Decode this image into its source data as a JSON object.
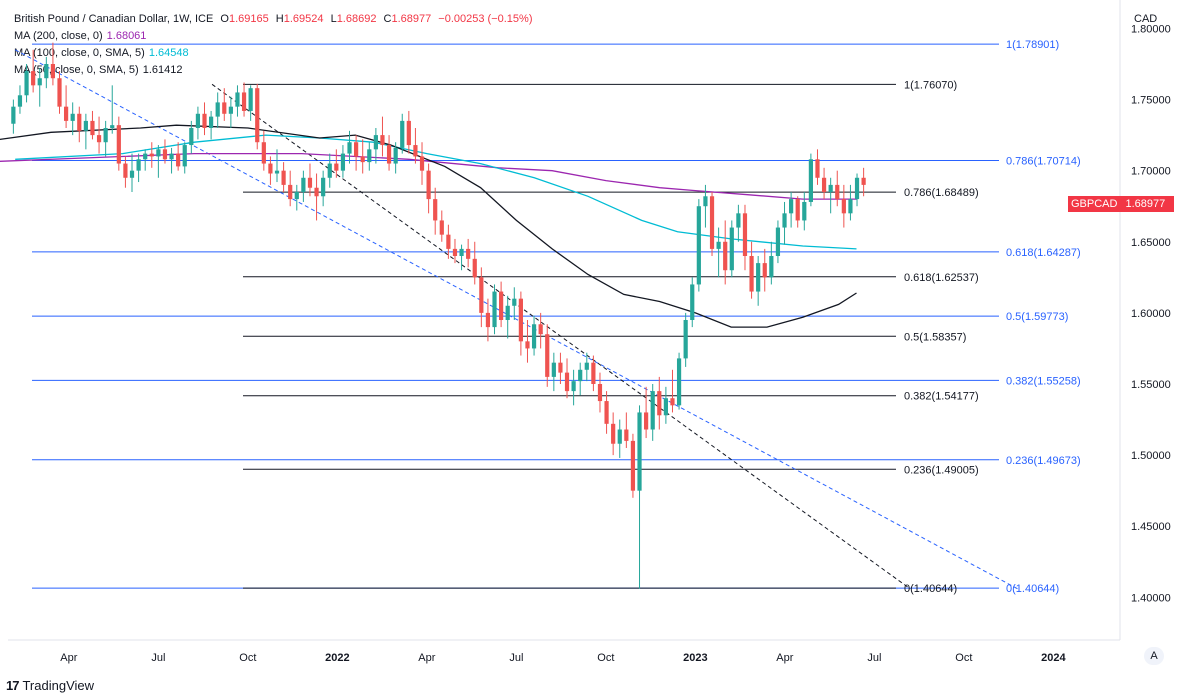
{
  "header": {
    "title": "British Pound / Canadian Dollar, 1W, ICE",
    "o_label": "O",
    "o": "1.69165",
    "h_label": "H",
    "h": "1.69524",
    "l_label": "L",
    "l": "1.68692",
    "c_label": "C",
    "c": "1.68977",
    "change": "−0.00253 (−0.15%)",
    "ma200_label": "MA (200, close, 0)",
    "ma200_value": "1.68061",
    "ma100_label": "MA (100, close, 0, SMA, 5)",
    "ma100_value": "1.64548",
    "ma50_label": "MA (50, close, 0, SMA, 5)",
    "ma50_value": "1.61412"
  },
  "axis": {
    "currency": "CAD",
    "scale_button": "A"
  },
  "symbol_tag": {
    "symbol": "GBPCAD",
    "price": "1.68977"
  },
  "brand": {
    "name": "TradingView",
    "logo": "17"
  },
  "colors": {
    "up": "#26a69a",
    "down": "#ef5350",
    "ma200": "#9c27b0",
    "ma100": "#00bcd4",
    "ma50": "#131722",
    "fib_blue": "#2962ff",
    "fib_black": "#131722"
  },
  "chart_data": {
    "type": "candlestick",
    "symbol": "GBPCAD",
    "timeframe": "1W",
    "ylim": [
      1.37,
      1.82
    ],
    "y_ticks": [
      1.4,
      1.45,
      1.5,
      1.55,
      1.6,
      1.65,
      1.7,
      1.75,
      1.8
    ],
    "y_tick_labels": [
      "1.40000",
      "1.45000",
      "1.50000",
      "1.55000",
      "1.60000",
      "1.65000",
      "1.70000",
      "1.75000",
      "1.80000"
    ],
    "x_ticks": [
      {
        "label": "Apr",
        "x": 2021.25,
        "bold": false
      },
      {
        "label": "Jul",
        "x": 2021.5,
        "bold": false
      },
      {
        "label": "Oct",
        "x": 2021.75,
        "bold": false
      },
      {
        "label": "2022",
        "x": 2022.0,
        "bold": true
      },
      {
        "label": "Apr",
        "x": 2022.25,
        "bold": false
      },
      {
        "label": "Jul",
        "x": 2022.5,
        "bold": false
      },
      {
        "label": "Oct",
        "x": 2022.75,
        "bold": false
      },
      {
        "label": "2023",
        "x": 2023.0,
        "bold": true
      },
      {
        "label": "Apr",
        "x": 2023.25,
        "bold": false
      },
      {
        "label": "Jul",
        "x": 2023.5,
        "bold": false
      },
      {
        "label": "Oct",
        "x": 2023.75,
        "bold": false
      },
      {
        "label": "2024",
        "x": 2024.0,
        "bold": true
      }
    ],
    "candles": [
      [
        1.733,
        1.75,
        1.726,
        1.745
      ],
      [
        1.745,
        1.76,
        1.74,
        1.753
      ],
      [
        1.753,
        1.775,
        1.748,
        1.77
      ],
      [
        1.77,
        1.785,
        1.755,
        1.76
      ],
      [
        1.76,
        1.772,
        1.745,
        1.765
      ],
      [
        1.765,
        1.78,
        1.758,
        1.775
      ],
      [
        1.775,
        1.79,
        1.76,
        1.765
      ],
      [
        1.765,
        1.77,
        1.74,
        1.745
      ],
      [
        1.745,
        1.76,
        1.73,
        1.735
      ],
      [
        1.735,
        1.748,
        1.725,
        1.74
      ],
      [
        1.74,
        1.745,
        1.72,
        1.728
      ],
      [
        1.728,
        1.74,
        1.715,
        1.735
      ],
      [
        1.735,
        1.742,
        1.722,
        1.725
      ],
      [
        1.725,
        1.738,
        1.712,
        1.72
      ],
      [
        1.72,
        1.735,
        1.71,
        1.73
      ],
      [
        1.73,
        1.76,
        1.726,
        1.732
      ],
      [
        1.732,
        1.738,
        1.7,
        1.705
      ],
      [
        1.705,
        1.71,
        1.688,
        1.695
      ],
      [
        1.695,
        1.712,
        1.685,
        1.7
      ],
      [
        1.7,
        1.712,
        1.692,
        1.708
      ],
      [
        1.708,
        1.715,
        1.7,
        1.712
      ],
      [
        1.712,
        1.72,
        1.702,
        1.71
      ],
      [
        1.71,
        1.718,
        1.695,
        1.715
      ],
      [
        1.715,
        1.722,
        1.705,
        1.708
      ],
      [
        1.708,
        1.716,
        1.698,
        1.712
      ],
      [
        1.712,
        1.72,
        1.7,
        1.703
      ],
      [
        1.703,
        1.72,
        1.698,
        1.718
      ],
      [
        1.718,
        1.735,
        1.712,
        1.73
      ],
      [
        1.73,
        1.745,
        1.722,
        1.74
      ],
      [
        1.74,
        1.748,
        1.725,
        1.73
      ],
      [
        1.73,
        1.742,
        1.722,
        1.738
      ],
      [
        1.738,
        1.755,
        1.73,
        1.748
      ],
      [
        1.748,
        1.758,
        1.735,
        1.74
      ],
      [
        1.74,
        1.752,
        1.73,
        1.745
      ],
      [
        1.745,
        1.76,
        1.738,
        1.755
      ],
      [
        1.755,
        1.762,
        1.738,
        1.742
      ],
      [
        1.742,
        1.76,
        1.735,
        1.758
      ],
      [
        1.758,
        1.761,
        1.715,
        1.72
      ],
      [
        1.72,
        1.728,
        1.7,
        1.705
      ],
      [
        1.705,
        1.71,
        1.69,
        1.698
      ],
      [
        1.698,
        1.715,
        1.692,
        1.7
      ],
      [
        1.7,
        1.706,
        1.685,
        1.69
      ],
      [
        1.69,
        1.7,
        1.675,
        1.68
      ],
      [
        1.68,
        1.69,
        1.672,
        1.685
      ],
      [
        1.685,
        1.7,
        1.678,
        1.695
      ],
      [
        1.695,
        1.705,
        1.682,
        1.688
      ],
      [
        1.688,
        1.698,
        1.665,
        1.682
      ],
      [
        1.682,
        1.7,
        1.675,
        1.695
      ],
      [
        1.695,
        1.712,
        1.688,
        1.705
      ],
      [
        1.705,
        1.715,
        1.695,
        1.7
      ],
      [
        1.7,
        1.718,
        1.695,
        1.712
      ],
      [
        1.712,
        1.728,
        1.705,
        1.72
      ],
      [
        1.72,
        1.725,
        1.7,
        1.71
      ],
      [
        1.71,
        1.722,
        1.698,
        1.706
      ],
      [
        1.706,
        1.72,
        1.7,
        1.715
      ],
      [
        1.715,
        1.73,
        1.705,
        1.725
      ],
      [
        1.725,
        1.738,
        1.71,
        1.718
      ],
      [
        1.718,
        1.725,
        1.7,
        1.705
      ],
      [
        1.705,
        1.72,
        1.698,
        1.716
      ],
      [
        1.716,
        1.74,
        1.712,
        1.735
      ],
      [
        1.735,
        1.742,
        1.712,
        1.718
      ],
      [
        1.718,
        1.73,
        1.705,
        1.71
      ],
      [
        1.71,
        1.72,
        1.69,
        1.7
      ],
      [
        1.7,
        1.705,
        1.67,
        1.68
      ],
      [
        1.68,
        1.688,
        1.655,
        1.665
      ],
      [
        1.665,
        1.672,
        1.65,
        1.655
      ],
      [
        1.655,
        1.662,
        1.638,
        1.645
      ],
      [
        1.645,
        1.652,
        1.635,
        1.64
      ],
      [
        1.64,
        1.648,
        1.63,
        1.645
      ],
      [
        1.645,
        1.652,
        1.632,
        1.638
      ],
      [
        1.638,
        1.65,
        1.62,
        1.625
      ],
      [
        1.625,
        1.632,
        1.59,
        1.6
      ],
      [
        1.6,
        1.61,
        1.58,
        1.59
      ],
      [
        1.59,
        1.62,
        1.585,
        1.615
      ],
      [
        1.615,
        1.622,
        1.59,
        1.595
      ],
      [
        1.595,
        1.612,
        1.582,
        1.605
      ],
      [
        1.605,
        1.618,
        1.595,
        1.61
      ],
      [
        1.61,
        1.615,
        1.57,
        1.58
      ],
      [
        1.58,
        1.595,
        1.565,
        1.575
      ],
      [
        1.575,
        1.598,
        1.57,
        1.592
      ],
      [
        1.592,
        1.6,
        1.575,
        1.585
      ],
      [
        1.585,
        1.592,
        1.548,
        1.555
      ],
      [
        1.555,
        1.572,
        1.545,
        1.565
      ],
      [
        1.565,
        1.572,
        1.55,
        1.558
      ],
      [
        1.558,
        1.568,
        1.54,
        1.545
      ],
      [
        1.545,
        1.56,
        1.535,
        1.552
      ],
      [
        1.552,
        1.565,
        1.542,
        1.56
      ],
      [
        1.56,
        1.572,
        1.552,
        1.565
      ],
      [
        1.565,
        1.57,
        1.545,
        1.55
      ],
      [
        1.55,
        1.558,
        1.53,
        1.538
      ],
      [
        1.538,
        1.545,
        1.515,
        1.522
      ],
      [
        1.522,
        1.53,
        1.5,
        1.508
      ],
      [
        1.508,
        1.525,
        1.498,
        1.518
      ],
      [
        1.518,
        1.53,
        1.505,
        1.51
      ],
      [
        1.51,
        1.515,
        1.47,
        1.475
      ],
      [
        1.475,
        1.535,
        1.406,
        1.53
      ],
      [
        1.53,
        1.548,
        1.512,
        1.518
      ],
      [
        1.518,
        1.55,
        1.51,
        1.545
      ],
      [
        1.545,
        1.555,
        1.518,
        1.528
      ],
      [
        1.528,
        1.548,
        1.522,
        1.54
      ],
      [
        1.54,
        1.56,
        1.53,
        1.535
      ],
      [
        1.535,
        1.572,
        1.532,
        1.568
      ],
      [
        1.568,
        1.6,
        1.562,
        1.595
      ],
      [
        1.595,
        1.625,
        1.59,
        1.62
      ],
      [
        1.62,
        1.68,
        1.615,
        1.675
      ],
      [
        1.675,
        1.69,
        1.66,
        1.682
      ],
      [
        1.682,
        1.685,
        1.64,
        1.645
      ],
      [
        1.645,
        1.66,
        1.625,
        1.65
      ],
      [
        1.65,
        1.665,
        1.62,
        1.63
      ],
      [
        1.63,
        1.665,
        1.625,
        1.66
      ],
      [
        1.66,
        1.676,
        1.65,
        1.67
      ],
      [
        1.67,
        1.676,
        1.63,
        1.64
      ],
      [
        1.64,
        1.65,
        1.61,
        1.615
      ],
      [
        1.615,
        1.64,
        1.605,
        1.635
      ],
      [
        1.635,
        1.645,
        1.615,
        1.625
      ],
      [
        1.625,
        1.65,
        1.62,
        1.64
      ],
      [
        1.64,
        1.665,
        1.635,
        1.66
      ],
      [
        1.66,
        1.678,
        1.648,
        1.67
      ],
      [
        1.67,
        1.685,
        1.66,
        1.68
      ],
      [
        1.68,
        1.682,
        1.66,
        1.665
      ],
      [
        1.665,
        1.685,
        1.658,
        1.678
      ],
      [
        1.678,
        1.712,
        1.675,
        1.708
      ],
      [
        1.708,
        1.715,
        1.69,
        1.695
      ],
      [
        1.695,
        1.702,
        1.68,
        1.685
      ],
      [
        1.685,
        1.695,
        1.67,
        1.69
      ],
      [
        1.69,
        1.7,
        1.675,
        1.68
      ],
      [
        1.68,
        1.69,
        1.66,
        1.67
      ],
      [
        1.67,
        1.69,
        1.665,
        1.68
      ],
      [
        1.68,
        1.698,
        1.675,
        1.695
      ],
      [
        1.695,
        1.702,
        1.682,
        1.69
      ]
    ],
    "ma200": [
      [
        2021.0,
        1.706
      ],
      [
        2021.3,
        1.709
      ],
      [
        2021.6,
        1.712
      ],
      [
        2021.9,
        1.712
      ],
      [
        2022.2,
        1.708
      ],
      [
        2022.45,
        1.702
      ],
      [
        2022.6,
        1.7
      ],
      [
        2022.75,
        1.693
      ],
      [
        2022.9,
        1.688
      ],
      [
        2023.0,
        1.686
      ],
      [
        2023.15,
        1.683
      ],
      [
        2023.3,
        1.68
      ],
      [
        2023.45,
        1.68
      ]
    ],
    "ma100": [
      [
        2021.1,
        1.708
      ],
      [
        2021.4,
        1.712
      ],
      [
        2021.6,
        1.72
      ],
      [
        2021.8,
        1.725
      ],
      [
        2021.95,
        1.723
      ],
      [
        2022.1,
        1.72
      ],
      [
        2022.25,
        1.712
      ],
      [
        2022.4,
        1.705
      ],
      [
        2022.55,
        1.695
      ],
      [
        2022.7,
        1.682
      ],
      [
        2022.85,
        1.665
      ],
      [
        2022.95,
        1.657
      ],
      [
        2023.1,
        1.652
      ],
      [
        2023.3,
        1.647
      ],
      [
        2023.45,
        1.645
      ]
    ],
    "ma50": [
      [
        2021.0,
        1.72
      ],
      [
        2021.2,
        1.727
      ],
      [
        2021.45,
        1.73
      ],
      [
        2021.55,
        1.732
      ],
      [
        2021.75,
        1.73
      ],
      [
        2021.95,
        1.723
      ],
      [
        2022.05,
        1.725
      ],
      [
        2022.15,
        1.718
      ],
      [
        2022.3,
        1.703
      ],
      [
        2022.4,
        1.688
      ],
      [
        2022.5,
        1.665
      ],
      [
        2022.6,
        1.645
      ],
      [
        2022.7,
        1.627
      ],
      [
        2022.8,
        1.613
      ],
      [
        2022.9,
        1.608
      ],
      [
        2023.0,
        1.6
      ],
      [
        2023.1,
        1.59
      ],
      [
        2023.2,
        1.59
      ],
      [
        2023.3,
        1.597
      ],
      [
        2023.4,
        1.606
      ],
      [
        2023.45,
        1.614
      ]
    ],
    "fib_blue": [
      {
        "label": "1(1.78901)",
        "level": 1.78901
      },
      {
        "label": "0.786(1.70714)",
        "level": 1.70714
      },
      {
        "label": "0.618(1.64287)",
        "level": 1.64287
      },
      {
        "label": "0.5(1.59773)",
        "level": 1.59773
      },
      {
        "label": "0.382(1.55258)",
        "level": 1.55258
      },
      {
        "label": "0.236(1.49673)",
        "level": 1.49673
      },
      {
        "label": "0(1.40644)",
        "level": 1.40644
      }
    ],
    "fib_black": [
      {
        "label": "1(1.76070)",
        "level": 1.7607
      },
      {
        "label": "0.786(1.68489)",
        "level": 1.68489
      },
      {
        "label": "0.618(1.62537)",
        "level": 1.62537
      },
      {
        "label": "0.5(1.58357)",
        "level": 1.58357
      },
      {
        "label": "0.382(1.54177)",
        "level": 1.54177
      },
      {
        "label": "0.236(1.49005)",
        "level": 1.49005
      },
      {
        "label": "0(1.40644)",
        "level": 1.40644
      }
    ],
    "trend_blue": [
      [
        2021.1,
        1.785
      ],
      [
        2023.9,
        1.406
      ]
    ],
    "trend_black": [
      [
        2021.65,
        1.7607
      ],
      [
        2023.6,
        1.406
      ]
    ]
  }
}
